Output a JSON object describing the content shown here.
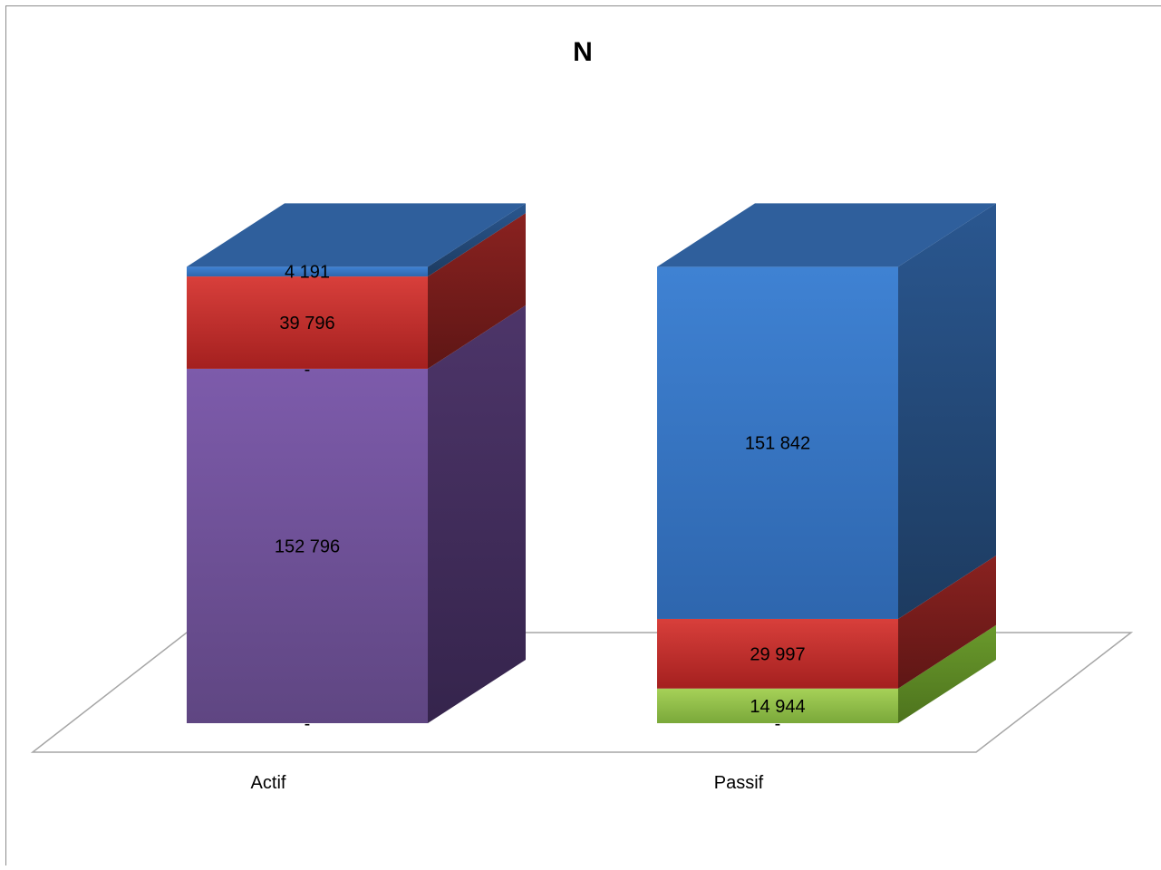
{
  "chart_data": {
    "type": "bar",
    "stacked": true,
    "three_d": true,
    "title": "N",
    "categories": [
      "Actif",
      "Passif"
    ],
    "series": [
      {
        "values": [
          0,
          0
        ],
        "labels": [
          "-",
          "-"
        ],
        "colors": {
          "front": "#8fb23b",
          "side": "#5d7a22",
          "top": "#a9c95a"
        }
      },
      {
        "values": [
          152796,
          14944
        ],
        "labels": [
          "152 796",
          "14 944"
        ],
        "colors": {
          "front": "#8a8a8a",
          "side": "#3f2c58",
          "top": "#8a64b8"
        },
        "point_colors": [
          {
            "front": "#6f4f99",
            "side": "#432d60",
            "top": "#8a64b8"
          },
          {
            "front": "#8fc046",
            "side": "#5c8a22",
            "top": "#a6d35a"
          }
        ]
      },
      {
        "values": [
          0,
          29997
        ],
        "labels": [
          "-",
          "29 997"
        ],
        "colors": {
          "front": "#c9302f",
          "side": "#7a1f1d",
          "top": "#d9534f"
        }
      },
      {
        "values": [
          39796,
          0
        ],
        "labels": [
          "39 796",
          ""
        ],
        "colors": {
          "front": "#c9302f",
          "side": "#7a1f1d",
          "top": "#d9534f"
        }
      },
      {
        "values": [
          4191,
          151842
        ],
        "labels": [
          "4 191",
          "151 842"
        ],
        "colors": {
          "front": "#3a78c9",
          "side": "#234b7e",
          "top": "#2f5f9c"
        }
      }
    ],
    "ylim": [
      0,
      200824
    ],
    "grid": false,
    "legend": "none"
  }
}
